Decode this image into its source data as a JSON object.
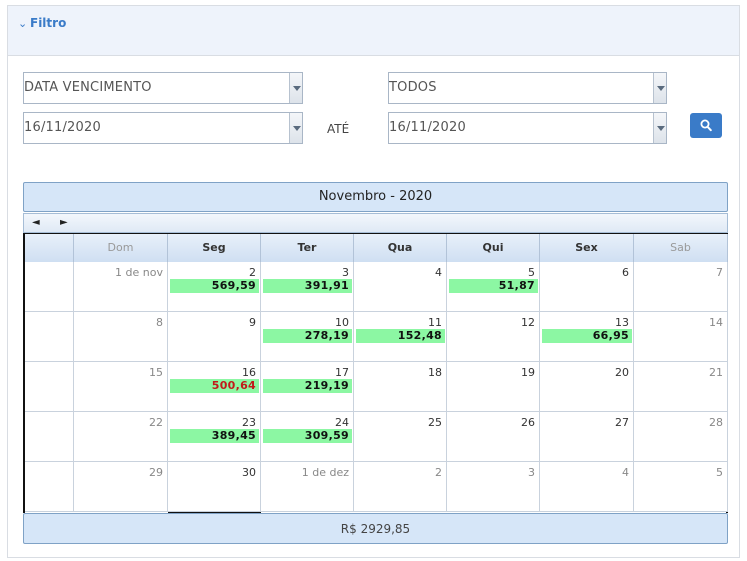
{
  "filter": {
    "title": "Filtro",
    "date_type": "DATA VENCIMENTO",
    "status": "TODOS",
    "date_from": "16/11/2020",
    "range_label": "ATÉ",
    "date_to": "16/11/2020"
  },
  "calendar": {
    "title": "Novembro - 2020",
    "prev": "◄",
    "next": "►",
    "weekdays": [
      "Dom",
      "Seg",
      "Ter",
      "Qua",
      "Qui",
      "Sex",
      "Sab"
    ],
    "weeks": [
      [
        {
          "label": "1 de nov",
          "other": false
        },
        {
          "label": "2",
          "amount": "569,59"
        },
        {
          "label": "3",
          "amount": "391,91"
        },
        {
          "label": "4"
        },
        {
          "label": "5",
          "amount": "51,87"
        },
        {
          "label": "6"
        },
        {
          "label": "7"
        }
      ],
      [
        {
          "label": "8"
        },
        {
          "label": "9"
        },
        {
          "label": "10",
          "amount": "278,19"
        },
        {
          "label": "11",
          "amount": "152,48"
        },
        {
          "label": "12"
        },
        {
          "label": "13",
          "amount": "66,95"
        },
        {
          "label": "14"
        }
      ],
      [
        {
          "label": "15"
        },
        {
          "label": "16",
          "amount": "500,64",
          "alert": true
        },
        {
          "label": "17",
          "amount": "219,19"
        },
        {
          "label": "18"
        },
        {
          "label": "19"
        },
        {
          "label": "20"
        },
        {
          "label": "21"
        }
      ],
      [
        {
          "label": "22"
        },
        {
          "label": "23",
          "amount": "389,45"
        },
        {
          "label": "24",
          "amount": "309,59"
        },
        {
          "label": "25"
        },
        {
          "label": "26"
        },
        {
          "label": "27"
        },
        {
          "label": "28"
        }
      ],
      [
        {
          "label": "29"
        },
        {
          "label": "30"
        },
        {
          "label": "1 de dez",
          "other": true
        },
        {
          "label": "2",
          "other": true
        },
        {
          "label": "3",
          "other": true
        },
        {
          "label": "4",
          "other": true
        },
        {
          "label": "5",
          "other": true
        }
      ]
    ],
    "total": "R$ 2929,85"
  },
  "colors": {
    "accent": "#3a7bc8",
    "amount_bg": "#8cf7a3",
    "alert": "#c21a1a"
  },
  "icons": {
    "toggle": "chevron-down-icon",
    "search": "search-icon"
  }
}
